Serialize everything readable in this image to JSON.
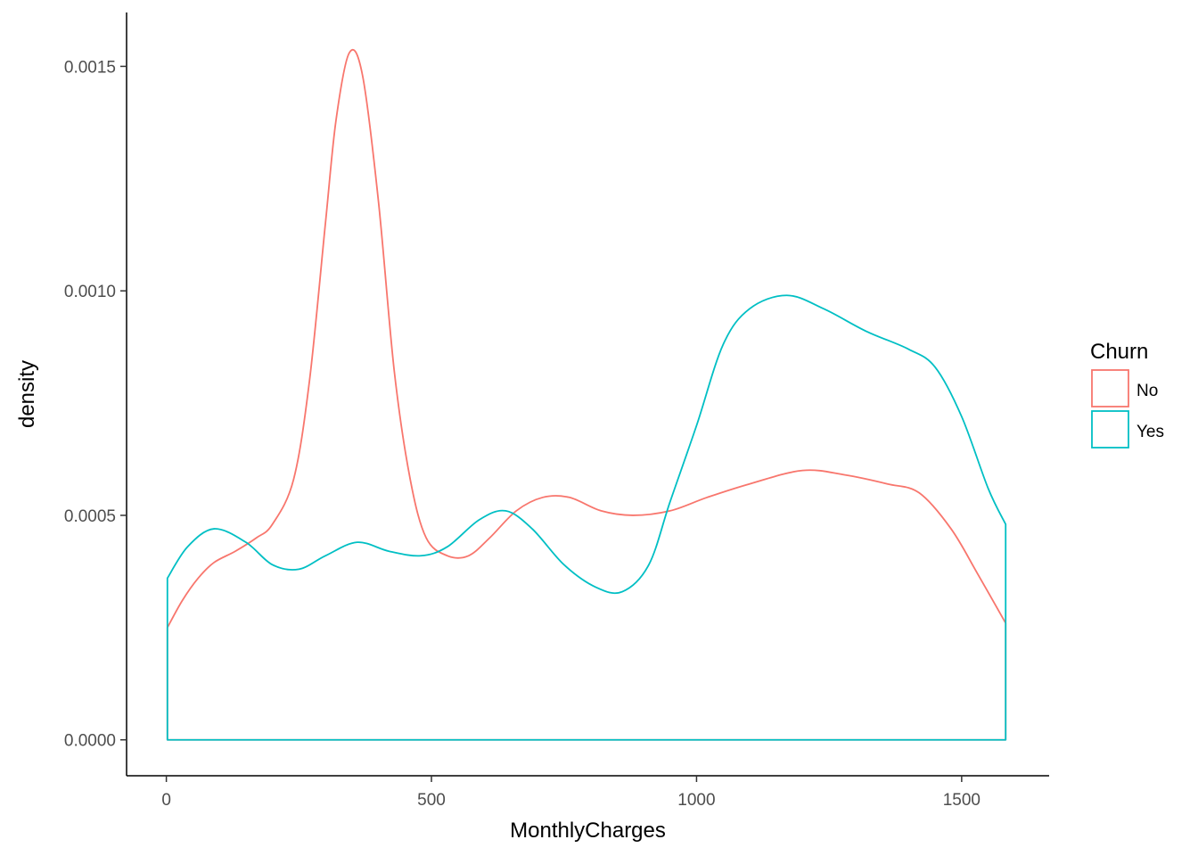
{
  "chart_data": {
    "type": "line",
    "subtype": "density",
    "title": "",
    "xlabel": "MonthlyCharges",
    "ylabel": "density",
    "xlim": [
      -75,
      1665
    ],
    "ylim": [
      -8e-05,
      0.00162
    ],
    "x_ticks": [
      0,
      500,
      1000,
      1500
    ],
    "x_tick_labels": [
      "0",
      "500",
      "1000",
      "1500"
    ],
    "y_ticks": [
      0,
      0.0005,
      0.001,
      0.0015
    ],
    "y_tick_labels": [
      "0.0000",
      "0.0005",
      "0.0010",
      "0.0015"
    ],
    "grid": false,
    "legend": {
      "title": "Churn",
      "position": "right"
    },
    "series": [
      {
        "name": "No",
        "color": "#F8766D",
        "points": [
          [
            2,
            0.00025
          ],
          [
            30,
            0.00031
          ],
          [
            60,
            0.00036
          ],
          [
            90,
            0.000395
          ],
          [
            130,
            0.00042
          ],
          [
            170,
            0.00045
          ],
          [
            200,
            0.00048
          ],
          [
            240,
            0.00058
          ],
          [
            270,
            0.0008
          ],
          [
            300,
            0.00115
          ],
          [
            320,
            0.00138
          ],
          [
            345,
            0.00153
          ],
          [
            370,
            0.00148
          ],
          [
            400,
            0.0012
          ],
          [
            430,
            0.00082
          ],
          [
            460,
            0.00058
          ],
          [
            490,
            0.00045
          ],
          [
            530,
            0.00041
          ],
          [
            570,
            0.00041
          ],
          [
            610,
            0.00045
          ],
          [
            660,
            0.00051
          ],
          [
            710,
            0.00054
          ],
          [
            760,
            0.00054
          ],
          [
            820,
            0.00051
          ],
          [
            880,
            0.0005
          ],
          [
            950,
            0.00051
          ],
          [
            1020,
            0.00054
          ],
          [
            1100,
            0.00057
          ],
          [
            1200,
            0.0006
          ],
          [
            1280,
            0.00059
          ],
          [
            1360,
            0.00057
          ],
          [
            1420,
            0.00055
          ],
          [
            1480,
            0.00047
          ],
          [
            1530,
            0.00037
          ],
          [
            1583,
            0.00026
          ]
        ]
      },
      {
        "name": "Yes",
        "color": "#00BFC4",
        "points": [
          [
            2,
            0.00036
          ],
          [
            40,
            0.00043
          ],
          [
            90,
            0.00047
          ],
          [
            150,
            0.00044
          ],
          [
            200,
            0.00039
          ],
          [
            250,
            0.00038
          ],
          [
            300,
            0.00041
          ],
          [
            360,
            0.00044
          ],
          [
            420,
            0.00042
          ],
          [
            480,
            0.00041
          ],
          [
            530,
            0.00043
          ],
          [
            590,
            0.00049
          ],
          [
            640,
            0.00051
          ],
          [
            690,
            0.00047
          ],
          [
            750,
            0.00039
          ],
          [
            810,
            0.00034
          ],
          [
            860,
            0.00033
          ],
          [
            910,
            0.00039
          ],
          [
            950,
            0.00053
          ],
          [
            1000,
            0.0007
          ],
          [
            1050,
            0.00088
          ],
          [
            1100,
            0.00096
          ],
          [
            1170,
            0.00099
          ],
          [
            1240,
            0.00096
          ],
          [
            1320,
            0.00091
          ],
          [
            1400,
            0.00087
          ],
          [
            1450,
            0.00083
          ],
          [
            1500,
            0.00072
          ],
          [
            1550,
            0.00056
          ],
          [
            1583,
            0.00048
          ]
        ]
      }
    ]
  }
}
